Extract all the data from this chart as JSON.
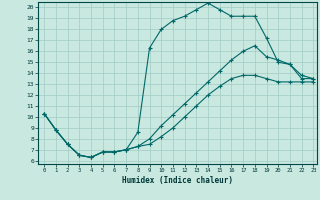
{
  "xlabel": "Humidex (Indice chaleur)",
  "bg_color": "#c8e8e0",
  "grid_color": "#a0ccc4",
  "line_color": "#006868",
  "xlim_min": -0.5,
  "xlim_max": 23.3,
  "ylim_min": 5.7,
  "ylim_max": 20.5,
  "xticks": [
    0,
    1,
    2,
    3,
    4,
    5,
    6,
    7,
    8,
    9,
    10,
    11,
    12,
    13,
    14,
    15,
    16,
    17,
    18,
    19,
    20,
    21,
    22,
    23
  ],
  "yticks": [
    6,
    7,
    8,
    9,
    10,
    11,
    12,
    13,
    14,
    15,
    16,
    17,
    18,
    19,
    20
  ],
  "line1_x": [
    0,
    1,
    2,
    3,
    4,
    5,
    6,
    7,
    8,
    9,
    10,
    11,
    12,
    13,
    14,
    15,
    16,
    17,
    18,
    19,
    20,
    21,
    22,
    23
  ],
  "line1_y": [
    10.3,
    8.8,
    7.5,
    6.5,
    6.3,
    6.8,
    6.8,
    7.0,
    8.6,
    16.3,
    18.0,
    18.8,
    19.2,
    19.8,
    20.4,
    19.8,
    19.2,
    19.2,
    19.2,
    17.2,
    15.0,
    14.8,
    13.5,
    13.5
  ],
  "line2_x": [
    0,
    1,
    2,
    3,
    4,
    5,
    6,
    7,
    8,
    9,
    10,
    11,
    12,
    13,
    14,
    15,
    16,
    17,
    18,
    19,
    20,
    21,
    22,
    23
  ],
  "line2_y": [
    10.3,
    8.8,
    7.5,
    6.5,
    6.3,
    6.8,
    6.8,
    7.0,
    7.3,
    8.0,
    9.2,
    10.2,
    11.2,
    12.2,
    13.2,
    14.2,
    15.2,
    16.0,
    16.5,
    15.5,
    15.2,
    14.8,
    13.8,
    13.5
  ],
  "line3_x": [
    0,
    1,
    2,
    3,
    4,
    5,
    6,
    7,
    8,
    9,
    10,
    11,
    12,
    13,
    14,
    15,
    16,
    17,
    18,
    19,
    20,
    21,
    22,
    23
  ],
  "line3_y": [
    10.3,
    8.8,
    7.5,
    6.5,
    6.3,
    6.8,
    6.8,
    7.0,
    7.3,
    7.5,
    8.2,
    9.0,
    10.0,
    11.0,
    12.0,
    12.8,
    13.5,
    13.8,
    13.8,
    13.5,
    13.2,
    13.2,
    13.2,
    13.2
  ]
}
